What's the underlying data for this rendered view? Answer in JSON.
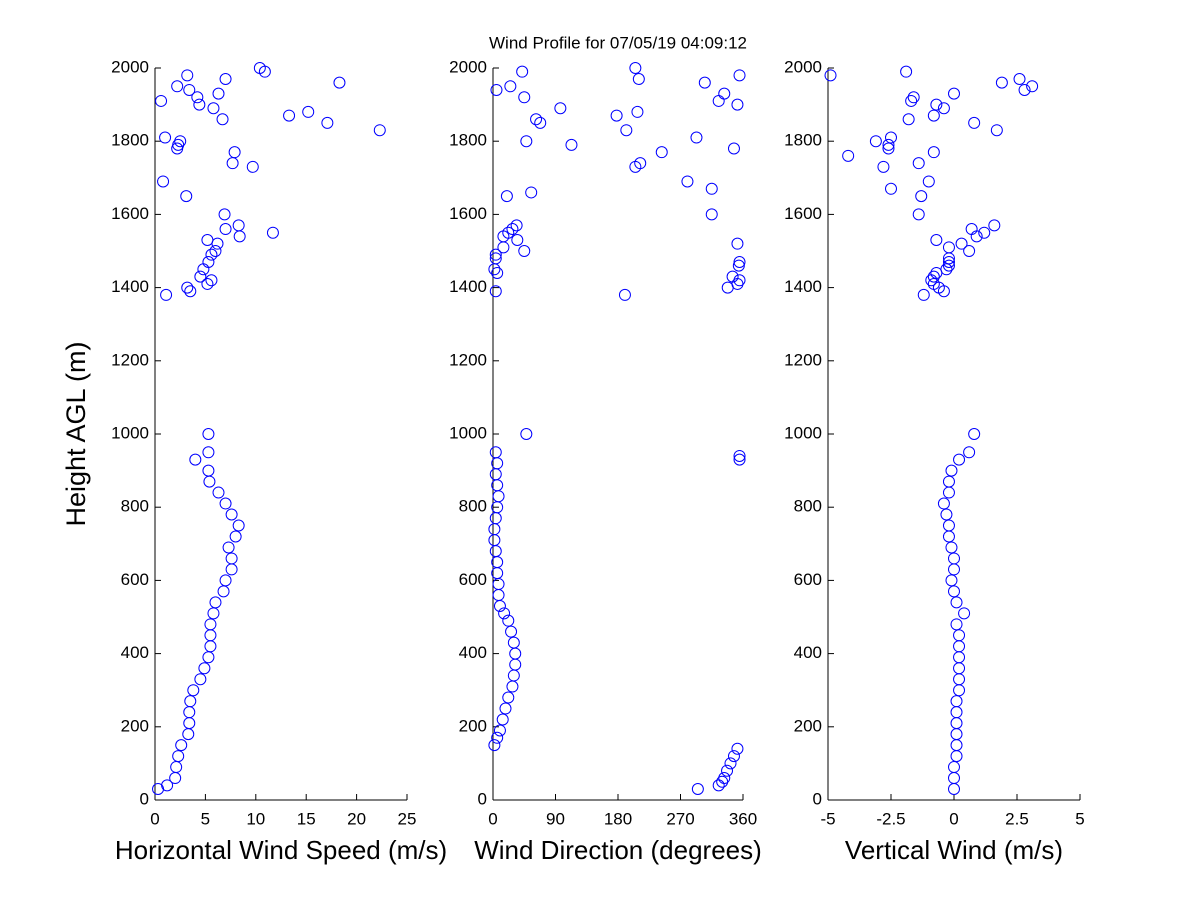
{
  "chart_data": [
    {
      "type": "scatter",
      "xlabel": "Horizontal Wind Speed (m/s)",
      "ylabel": "Height AGL (m)",
      "color": "#0000ff",
      "xlim": [
        0,
        25
      ],
      "xticks": [
        0,
        5,
        10,
        15,
        20,
        25
      ],
      "ylim": [
        0,
        2000
      ],
      "yticks": [
        0,
        200,
        400,
        600,
        800,
        1000,
        1200,
        1400,
        1600,
        1800,
        2000
      ],
      "x": [
        0.3,
        1.2,
        2.0,
        2.1,
        2.3,
        2.6,
        3.3,
        3.4,
        3.4,
        3.5,
        3.8,
        4.5,
        4.9,
        5.3,
        5.5,
        5.5,
        5.5,
        5.8,
        6.0,
        6.8,
        7.0,
        7.6,
        7.6,
        7.3,
        8.0,
        8.3,
        7.6,
        7.0,
        6.3,
        5.4,
        5.3,
        4.0,
        5.3,
        5.3,
        1.1,
        3.2,
        3.5,
        5.2,
        5.6,
        4.5,
        4.8,
        5.3,
        5.6,
        6.0,
        6.2,
        5.2,
        8.4,
        11.7,
        7.0,
        8.3,
        6.9,
        3.1,
        0.8,
        9.7,
        7.7,
        7.9,
        2.2,
        2.3,
        2.5,
        1.0,
        22.3,
        17.1,
        13.3,
        15.2,
        6.7,
        5.8,
        4.4,
        0.6,
        4.2,
        6.3,
        3.4,
        2.2,
        18.3,
        7.0,
        3.2,
        10.9,
        10.4
      ],
      "y": [
        30,
        40,
        60,
        90,
        120,
        150,
        180,
        210,
        240,
        270,
        300,
        330,
        360,
        390,
        420,
        450,
        480,
        510,
        540,
        570,
        600,
        630,
        660,
        690,
        720,
        750,
        780,
        810,
        840,
        870,
        900,
        930,
        950,
        1000,
        1380,
        1400,
        1390,
        1410,
        1420,
        1430,
        1450,
        1470,
        1490,
        1500,
        1520,
        1530,
        1540,
        1550,
        1560,
        1570,
        1600,
        1650,
        1690,
        1730,
        1740,
        1770,
        1780,
        1790,
        1800,
        1810,
        1830,
        1850,
        1870,
        1880,
        1860,
        1890,
        1900,
        1910,
        1920,
        1930,
        1940,
        1950,
        1960,
        1970,
        1980,
        1990,
        2000
      ]
    },
    {
      "type": "scatter",
      "title": "Wind Profile for  07/05/19 04:09:12",
      "xlabel": "Wind Direction (degrees)",
      "color": "#0000ff",
      "xlim": [
        0,
        360
      ],
      "xticks": [
        0,
        90,
        180,
        270,
        360
      ],
      "ylim": [
        0,
        2000
      ],
      "yticks": [
        0,
        200,
        400,
        600,
        800,
        1000,
        1200,
        1400,
        1600,
        1800,
        2000
      ],
      "x": [
        295,
        325,
        330,
        333,
        337,
        342,
        347,
        352,
        2,
        6,
        10,
        14,
        18,
        22,
        28,
        30,
        32,
        32,
        30,
        26,
        22,
        16,
        10,
        8,
        8,
        6,
        6,
        4,
        2,
        2,
        4,
        6,
        8,
        6,
        4,
        6,
        355,
        355,
        4,
        48,
        190,
        4,
        338,
        352,
        355,
        345,
        6,
        2,
        354,
        355,
        4,
        4,
        45,
        15,
        352,
        35,
        15,
        22,
        28,
        34,
        315,
        20,
        55,
        315,
        280,
        205,
        212,
        243,
        347,
        113,
        48,
        293,
        192,
        68,
        62,
        178,
        208,
        97,
        352,
        325,
        45,
        333,
        5,
        25,
        305,
        210,
        355,
        42,
        205
      ],
      "y": [
        30,
        40,
        50,
        60,
        80,
        100,
        120,
        140,
        150,
        170,
        190,
        220,
        250,
        280,
        310,
        340,
        370,
        400,
        430,
        460,
        490,
        510,
        530,
        560,
        590,
        620,
        650,
        680,
        710,
        740,
        770,
        800,
        830,
        860,
        890,
        920,
        930,
        940,
        950,
        1000,
        1380,
        1390,
        1400,
        1410,
        1420,
        1430,
        1440,
        1450,
        1460,
        1470,
        1480,
        1490,
        1500,
        1510,
        1520,
        1530,
        1540,
        1550,
        1560,
        1570,
        1600,
        1650,
        1660,
        1670,
        1690,
        1730,
        1740,
        1770,
        1780,
        1790,
        1800,
        1810,
        1830,
        1850,
        1860,
        1870,
        1880,
        1890,
        1900,
        1910,
        1920,
        1930,
        1940,
        1950,
        1960,
        1970,
        1980,
        1990,
        2000
      ]
    },
    {
      "type": "scatter",
      "xlabel": "Vertical Wind (m/s)",
      "color": "#0000ff",
      "xlim": [
        -5,
        5
      ],
      "xticks": [
        -5,
        -2.5,
        0,
        2.5,
        5
      ],
      "ylim": [
        0,
        2000
      ],
      "yticks": [
        0,
        200,
        400,
        600,
        800,
        1000,
        1200,
        1400,
        1600,
        1800,
        2000
      ],
      "x": [
        0,
        0,
        0,
        0.1,
        0.1,
        0.1,
        0.1,
        0.1,
        0.1,
        0.2,
        0.2,
        0.2,
        0.2,
        0.2,
        0.2,
        0.1,
        0.4,
        0.1,
        0,
        -0.1,
        0,
        0,
        -0.1,
        -0.2,
        -0.2,
        -0.3,
        -0.4,
        -0.2,
        -0.2,
        -0.1,
        0.2,
        0.6,
        0.8,
        -1.2,
        -0.4,
        -0.6,
        -0.8,
        -0.9,
        -0.8,
        -0.7,
        -0.3,
        -0.2,
        -0.2,
        -0.2,
        0.6,
        -0.2,
        0.3,
        -0.7,
        0.9,
        1.2,
        0.7,
        1.6,
        -1.4,
        -1.3,
        -2.5,
        -1.0,
        -2.8,
        -1.4,
        -4.2,
        -0.8,
        -2.6,
        -2.6,
        -3.1,
        -2.5,
        1.7,
        0.8,
        -1.8,
        -0.8,
        -0.4,
        -0.7,
        -1.7,
        -1.6,
        0,
        2.8,
        3.1,
        1.9,
        2.6,
        -4.9,
        -1.9
      ],
      "y": [
        30,
        60,
        90,
        120,
        150,
        180,
        210,
        240,
        270,
        300,
        330,
        360,
        390,
        420,
        450,
        480,
        510,
        540,
        570,
        600,
        630,
        660,
        690,
        720,
        750,
        780,
        810,
        840,
        870,
        900,
        930,
        950,
        1000,
        1380,
        1390,
        1400,
        1410,
        1420,
        1430,
        1440,
        1450,
        1460,
        1470,
        1480,
        1500,
        1510,
        1520,
        1530,
        1540,
        1550,
        1560,
        1570,
        1600,
        1650,
        1670,
        1690,
        1730,
        1740,
        1760,
        1770,
        1780,
        1790,
        1800,
        1810,
        1830,
        1850,
        1860,
        1870,
        1890,
        1900,
        1910,
        1920,
        1930,
        1940,
        1950,
        1960,
        1970,
        1980,
        1990
      ]
    }
  ]
}
